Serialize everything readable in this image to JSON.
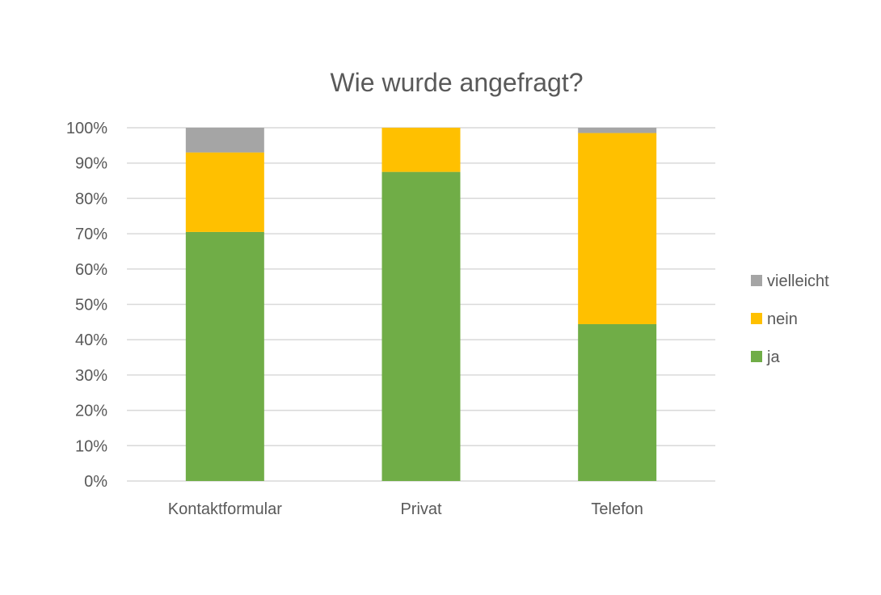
{
  "chart_data": {
    "type": "bar",
    "stacked": true,
    "percent": true,
    "title": "Wie wurde angefragt?",
    "categories": [
      "Kontaktformular",
      "Privat",
      "Telefon"
    ],
    "series": [
      {
        "name": "ja",
        "color": "#70AD47",
        "values": [
          70.5,
          87.5,
          44.4
        ]
      },
      {
        "name": "nein",
        "color": "#FFC000",
        "values": [
          22.5,
          12.5,
          54.1
        ]
      },
      {
        "name": "vielleicht",
        "color": "#A5A5A5",
        "values": [
          7.0,
          0,
          1.5
        ]
      }
    ],
    "ylim": [
      0,
      100
    ],
    "yticks": [
      "0%",
      "10%",
      "20%",
      "30%",
      "40%",
      "50%",
      "60%",
      "70%",
      "80%",
      "90%",
      "100%"
    ],
    "grid": true,
    "legend_position": "right",
    "legend_order": [
      "vielleicht",
      "nein",
      "ja"
    ],
    "gridline_color": "#D9D9D9",
    "text_color": "#595959"
  }
}
